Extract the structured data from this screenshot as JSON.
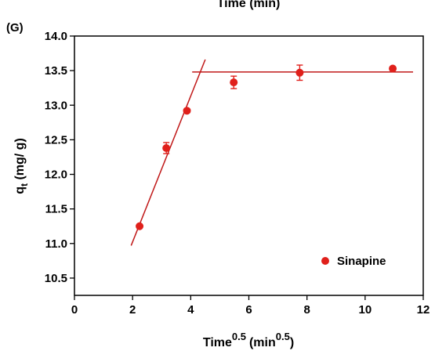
{
  "top_cut_text": "Time (min)",
  "panel_label": "(G)",
  "colors": {
    "series": "#e0201b",
    "fit": "#c01818",
    "axis": "#000000"
  },
  "chart_data": {
    "type": "scatter",
    "xlabel": {
      "base": "Time",
      "sup": "0.5",
      "unit_base": "(min",
      "unit_sup": "0.5",
      "close": ")"
    },
    "ylabel": {
      "base": "q",
      "sub": "t",
      "unit": " (mg/ g)"
    },
    "xlim": [
      0,
      12
    ],
    "ylim": [
      10.25,
      14.0
    ],
    "x_ticks": [
      0,
      2,
      4,
      6,
      8,
      10,
      12
    ],
    "x_tick_labels": [
      "0",
      "2",
      "4",
      "6",
      "8",
      "10",
      "12"
    ],
    "y_ticks": [
      10.5,
      11.0,
      11.5,
      12.0,
      12.5,
      13.0,
      13.5,
      14.0
    ],
    "y_tick_labels": [
      "10.5",
      "11.0",
      "11.5",
      "12.0",
      "12.5",
      "13.0",
      "13.5",
      "14.0"
    ],
    "legend_position": "bottom-right",
    "series": [
      {
        "name": "Sinapine",
        "x": [
          2.24,
          3.16,
          3.87,
          5.48,
          7.75,
          10.95
        ],
        "y": [
          11.25,
          12.38,
          12.92,
          13.33,
          13.47,
          13.53
        ],
        "err": [
          0.0,
          0.08,
          0.0,
          0.09,
          0.11,
          0.0
        ]
      }
    ],
    "fit_lines": [
      {
        "x": [
          1.95,
          4.5
        ],
        "y": [
          10.97,
          13.66
        ]
      },
      {
        "x": [
          4.05,
          11.65
        ],
        "y": [
          13.48,
          13.48
        ]
      }
    ]
  }
}
